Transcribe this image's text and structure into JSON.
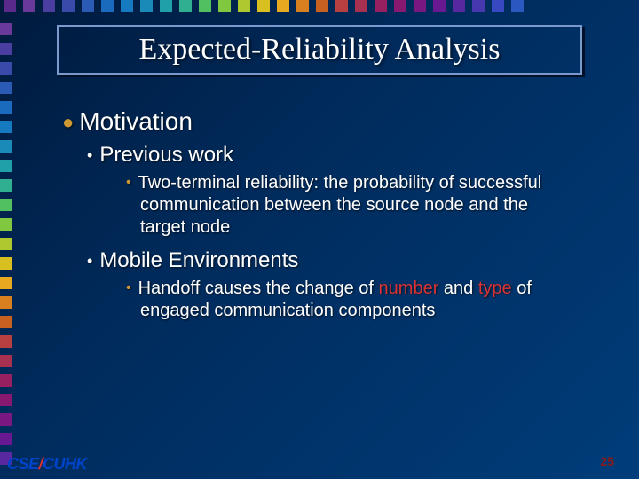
{
  "slide": {
    "title": "Expected-Reliability Analysis",
    "page_number": "25",
    "logo": {
      "part1": "CSE",
      "slash": "/",
      "part2": "CUHK"
    }
  },
  "content": {
    "l1_motivation": "Motivation",
    "l2_previous": "Previous work",
    "l3_twoterminal": "Two-terminal reliability: the probability of successful communication between the source node and the target node",
    "l2_mobile": "Mobile Environments",
    "l3_handoff_pre": "Handoff causes the change of ",
    "l3_handoff_hl1": "number",
    "l3_handoff_mid": " and ",
    "l3_handoff_hl2": "type",
    "l3_handoff_post": " of engaged communication components"
  },
  "style": {
    "square_colors_top": [
      "#5a2a8a",
      "#6a3a9a",
      "#4a3fa0",
      "#3a4aaa",
      "#2a5ab4",
      "#1a6abe",
      "#157ac0",
      "#1a8ab8",
      "#20a0a8",
      "#30b090",
      "#50c060",
      "#80c840",
      "#b0c830",
      "#d8c020",
      "#e8a820",
      "#d88020",
      "#c86020",
      "#b84040",
      "#a83050",
      "#982060",
      "#881870",
      "#781880",
      "#681890",
      "#5828a0",
      "#4838b0",
      "#3848c0",
      "#2858c0"
    ],
    "square_colors_left": [
      "#6a3a9a",
      "#4a3fa0",
      "#3a4aaa",
      "#2a5ab4",
      "#1a6abe",
      "#157ac0",
      "#1a8ab8",
      "#20a0a8",
      "#30b090",
      "#50c060",
      "#80c840",
      "#b0c830",
      "#d8c020",
      "#e8a820",
      "#d88020",
      "#c86020",
      "#b84040",
      "#a83050",
      "#982060",
      "#881870",
      "#781880",
      "#681890",
      "#5828a0"
    ],
    "text_color": "#ffffff",
    "highlight_color": "#d93333",
    "bullet_l1_color": "#cc9933",
    "bullet_l2_color": "#ffffff",
    "bullet_l3_color": "#cc9933",
    "bg_gradient_from": "#001a3d",
    "bg_gradient_to": "#003d7a",
    "title_border_color": "#7a99cc",
    "font_body": "Arial",
    "font_title": "Times New Roman",
    "fontsize_title": 34,
    "fontsize_l1": 28,
    "fontsize_l2": 24,
    "fontsize_l3": 20
  }
}
